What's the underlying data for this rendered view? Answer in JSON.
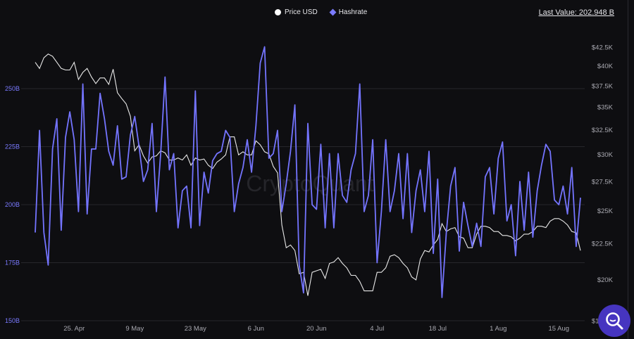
{
  "legend": {
    "price_label": "Price USD",
    "hashrate_label": "Hashrate"
  },
  "last_value": "Last Value: 202.948 B",
  "watermark": "CryptoQuant",
  "colors": {
    "price": "#e8e8e8",
    "hashrate": "#7474ff",
    "background": "#0e0e11",
    "grid": "#26262b",
    "search_button": "#4635c0"
  },
  "chart_data": {
    "type": "line",
    "title": "",
    "start_date": "2022-04-16",
    "end_date": "2022-08-20",
    "x_tick_labels": [
      "25. Apr",
      "9 May",
      "23 May",
      "6 Jun",
      "20 Jun",
      "4 Jul",
      "18 Jul",
      "1 Aug",
      "15 Aug"
    ],
    "x_tick_day_offsets": [
      9,
      23,
      37,
      51,
      65,
      79,
      93,
      107,
      121
    ],
    "left_axis": {
      "label": "Hashrate",
      "unit": "B",
      "scale": "linear",
      "range": [
        150,
        250
      ],
      "ticks": [
        "250B",
        "225B",
        "200B",
        "175B",
        "150B"
      ],
      "tick_values": [
        250,
        225,
        200,
        175,
        150
      ]
    },
    "right_axis": {
      "label": "Price USD",
      "unit": "USD",
      "scale": "log",
      "ticks": [
        "$42.5K",
        "$40K",
        "$37.5K",
        "$35K",
        "$32.5K",
        "$30K",
        "$27.5K",
        "$25K",
        "$22.5K",
        "$20K",
        "$17.5K"
      ],
      "tick_values": [
        42500,
        40000,
        37500,
        35000,
        32500,
        30000,
        27500,
        25000,
        22500,
        20000,
        17500
      ]
    },
    "grid": true,
    "legend_position": "top-center",
    "series": [
      {
        "name": "Hashrate",
        "axis": "left",
        "unit": "B",
        "values": [
          188,
          232,
          188,
          174,
          224,
          237,
          189,
          229,
          240,
          228,
          197,
          252,
          196,
          224,
          224,
          248,
          237,
          223,
          217,
          234,
          211,
          212,
          230,
          238,
          225,
          210,
          215,
          235,
          197,
          222,
          255,
          215,
          222,
          190,
          206,
          208,
          190,
          249,
          191,
          214,
          205,
          219,
          222,
          223,
          232,
          229,
          197,
          209,
          216,
          228,
          214,
          234,
          261,
          268,
          220,
          222,
          232,
          197,
          209,
          223,
          243,
          174,
          162,
          235,
          200,
          198,
          226,
          190,
          222,
          190,
          222,
          204,
          201,
          215,
          222,
          252,
          197,
          204,
          228,
          175,
          197,
          228,
          197,
          206,
          222,
          194,
          222,
          188,
          206,
          215,
          197,
          223,
          179,
          211,
          160,
          188,
          208,
          216,
          180,
          201,
          191,
          182,
          192,
          182,
          212,
          216,
          196,
          220,
          227,
          193,
          200,
          178,
          210,
          189,
          214,
          186,
          206,
          217,
          226,
          223,
          202,
          200,
          208,
          196,
          216,
          182,
          203
        ]
      },
      {
        "name": "Price USD",
        "axis": "right",
        "unit": "K USD",
        "values": [
          40.5,
          39.7,
          41.1,
          41.6,
          41.3,
          40.5,
          39.7,
          39.5,
          39.5,
          40.5,
          38.3,
          39.2,
          39.7,
          38.6,
          37.8,
          38.5,
          38.5,
          37.7,
          39.6,
          36.7,
          36.0,
          35.4,
          34.0,
          30.4,
          31.0,
          29.9,
          29.2,
          29.8,
          29.9,
          30.4,
          30.2,
          29.5,
          29.5,
          29.7,
          29.5,
          30.0,
          29.0,
          29.7,
          29.5,
          29.6,
          29.0,
          28.7,
          29.3,
          29.6,
          30.0,
          31.8,
          31.8,
          30.0,
          30.3,
          30.0,
          30.0,
          31.4,
          31.0,
          30.3,
          30.1,
          28.9,
          28.3,
          23.9,
          22.2,
          22.4,
          22.0,
          20.4,
          20.5,
          19.0,
          20.5,
          20.6,
          20.7,
          20.1,
          21.1,
          21.2,
          21.5,
          21.1,
          20.8,
          20.3,
          20.3,
          19.9,
          19.3,
          19.3,
          19.3,
          20.5,
          20.5,
          20.8,
          21.6,
          21.7,
          21.5,
          21.1,
          20.8,
          20.2,
          20.0,
          21.4,
          22.0,
          21.9,
          22.4,
          22.8,
          24.0,
          23.4,
          23.6,
          23.7,
          23.0,
          22.9,
          22.2,
          22.2,
          23.2,
          23.8,
          23.8,
          23.7,
          23.4,
          23.4,
          23.1,
          23.1,
          23.0,
          22.7,
          22.9,
          23.2,
          23.2,
          23.4,
          23.8,
          23.8,
          23.7,
          24.2,
          24.4,
          24.4,
          24.2,
          23.9,
          23.4,
          23.3,
          22.0
        ]
      }
    ]
  }
}
